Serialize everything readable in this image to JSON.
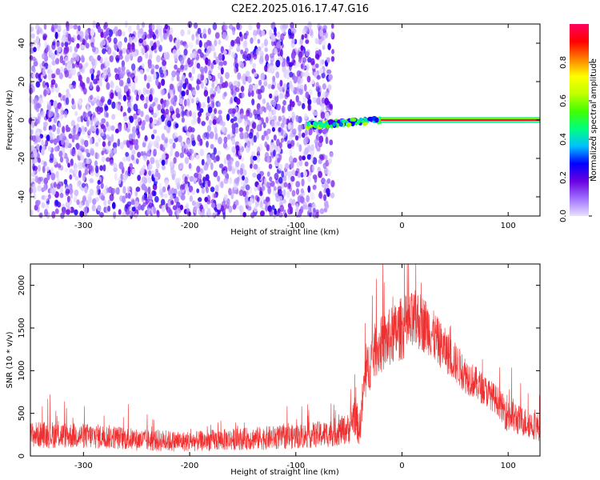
{
  "figure": {
    "title": "C2E2.2025.016.17.47.G16"
  },
  "chart_data": [
    {
      "type": "heatmap",
      "title": "C2E2.2025.016.17.47.G16",
      "xlabel": "Height of straight line (km)",
      "ylabel": "Frequency (Hz)",
      "xlim": [
        -350,
        130
      ],
      "ylim": [
        -50,
        50
      ],
      "x_ticks": [
        -300,
        -200,
        -100,
        0,
        100
      ],
      "y_ticks": [
        -40,
        -20,
        0,
        20,
        40
      ],
      "grid": false,
      "colorbar": {
        "label": "Normalized spectral amplitude",
        "range": [
          0.0,
          1.0
        ],
        "ticks": [
          0.0,
          0.2,
          0.4,
          0.6,
          0.8
        ],
        "colormap": [
          "#e8e0ff",
          "#a070ff",
          "#6a00e0",
          "#0000ff",
          "#00c0ff",
          "#00ff80",
          "#40ff00",
          "#c0ff00",
          "#ffff00",
          "#ff8000",
          "#ff0000",
          "#ff0060"
        ]
      },
      "regions": [
        {
          "kind": "broadband_noise",
          "x_range": [
            -350,
            -65
          ],
          "y_range": [
            -50,
            50
          ],
          "amplitude_range": [
            0.0,
            0.25
          ]
        },
        {
          "kind": "signal_band",
          "x_range": [
            -90,
            -20
          ],
          "y_center": [
            -3,
            0
          ],
          "amplitude_range": [
            0.2,
            0.7
          ]
        },
        {
          "kind": "signal_band",
          "x_range": [
            -20,
            130
          ],
          "y_center": 0,
          "amplitude": 0.95
        }
      ]
    },
    {
      "type": "line",
      "xlabel": "Height of straight line (km)",
      "ylabel": "SNR (10 * v/v)",
      "xlim": [
        -350,
        130
      ],
      "ylim": [
        0,
        2250
      ],
      "x_ticks": [
        -300,
        -200,
        -100,
        0,
        100
      ],
      "y_ticks": [
        0,
        500,
        1000,
        1500,
        2000
      ],
      "grid": false,
      "color": "#f03030",
      "series": [
        {
          "x": [
            -350,
            -330,
            -310,
            -290,
            -270,
            -250,
            -230,
            -210,
            -190,
            -170,
            -150,
            -130,
            -110,
            -90,
            -70,
            -50,
            -45,
            -40,
            -35,
            -30,
            -25,
            -20,
            -15,
            -10,
            -5,
            0,
            5,
            10,
            15,
            20,
            25,
            30,
            40,
            50,
            60,
            70,
            80,
            90,
            95,
            100,
            110,
            120,
            130
          ],
          "y": [
            250,
            250,
            240,
            230,
            220,
            190,
            180,
            170,
            175,
            190,
            200,
            210,
            220,
            240,
            260,
            320,
            500,
            300,
            900,
            1100,
            1250,
            1300,
            1350,
            1400,
            1450,
            1500,
            1520,
            1550,
            1600,
            1550,
            1500,
            1400,
            1250,
            1100,
            950,
            850,
            750,
            650,
            550,
            500,
            420,
            380,
            330
          ],
          "noise_amplitude": [
            150,
            160,
            150,
            150,
            140,
            130,
            130,
            120,
            120,
            130,
            130,
            140,
            140,
            150,
            160,
            180,
            250,
            200,
            300,
            320,
            330,
            340,
            350,
            350,
            360,
            380,
            380,
            380,
            360,
            340,
            320,
            300,
            260,
            240,
            220,
            200,
            180,
            170,
            180,
            250,
            180,
            170,
            160
          ]
        }
      ]
    }
  ]
}
